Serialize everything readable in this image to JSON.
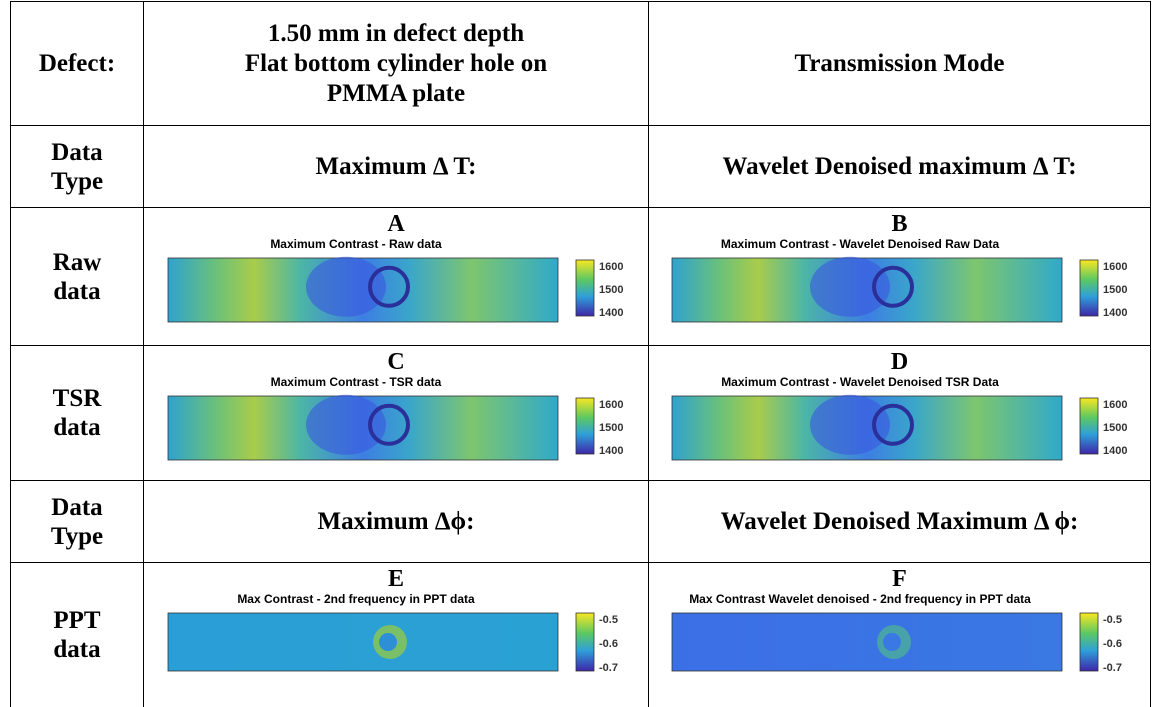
{
  "header": {
    "label": "Defect:",
    "description": [
      "1.50 mm in defect depth",
      "Flat bottom cylinder hole on",
      "PMMA plate"
    ],
    "mode": "Transmission Mode"
  },
  "rows": [
    {
      "label": [
        "Data",
        "Type"
      ],
      "cells": [
        "Maximum Δ T:",
        "Wavelet Denoised maximum Δ T:"
      ]
    },
    {
      "label": [
        "Raw",
        "data"
      ],
      "cells": [
        {
          "letter": "A",
          "title": "Maximum Contrast - Raw data",
          "colorbar": [
            "1600",
            "1500",
            "1400"
          ]
        },
        {
          "letter": "B",
          "title": "Maximum Contrast - Wavelet Denoised Raw Data",
          "colorbar": [
            "1600",
            "1500",
            "1400"
          ]
        }
      ]
    },
    {
      "label": [
        "TSR",
        "data"
      ],
      "cells": [
        {
          "letter": "C",
          "title": "Maximum Contrast - TSR data",
          "colorbar": [
            "1600",
            "1500",
            "1400"
          ]
        },
        {
          "letter": "D",
          "title": "Maximum Contrast - Wavelet Denoised TSR Data",
          "colorbar": [
            "1600",
            "1500",
            "1400"
          ]
        }
      ]
    },
    {
      "label": [
        "Data",
        "Type"
      ],
      "cells": [
        "Maximum Δϕ:",
        "Wavelet Denoised Maximum Δ ϕ:"
      ]
    },
    {
      "label": [
        "PPT",
        "data"
      ],
      "cells": [
        {
          "letter": "E",
          "title": "Max Contrast - 2nd frequency in PPT data",
          "colorbar": [
            "-0.5",
            "-0.6",
            "-0.7"
          ]
        },
        {
          "letter": "F",
          "title": "Max Contrast Wavelet denoised - 2nd frequency in PPT data",
          "colorbar": [
            "-0.5",
            "-0.6",
            "-0.7"
          ]
        }
      ]
    }
  ]
}
